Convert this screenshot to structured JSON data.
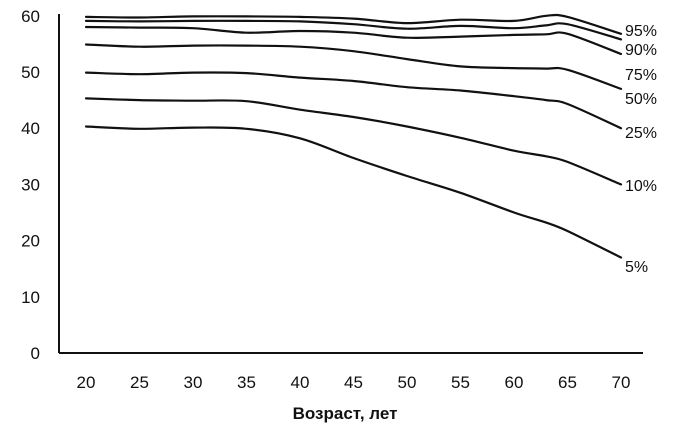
{
  "chart_data": {
    "type": "line",
    "title": "",
    "xlabel": "Возраст, лет",
    "ylabel": "",
    "xlim": [
      17,
      73
    ],
    "ylim": [
      0,
      61
    ],
    "xticks": [
      20,
      25,
      30,
      35,
      40,
      45,
      50,
      55,
      60,
      65,
      70
    ],
    "yticks": [
      0,
      10,
      20,
      30,
      40,
      50,
      60
    ],
    "x": [
      20,
      25,
      30,
      35,
      40,
      45,
      50,
      55,
      60,
      63,
      65,
      70
    ],
    "grid": false,
    "series": [
      {
        "name": "95%",
        "values": [
          59.8,
          59.7,
          59.9,
          59.9,
          59.8,
          59.5,
          58.7,
          59.3,
          59.1,
          60.0,
          59.8,
          56.8
        ]
      },
      {
        "name": "90%",
        "values": [
          59.1,
          59.0,
          59.1,
          59.1,
          59.0,
          58.5,
          57.7,
          58.2,
          57.8,
          58.3,
          58.5,
          55.8
        ]
      },
      {
        "name": "75%",
        "values": [
          58.0,
          57.9,
          57.8,
          57.0,
          57.3,
          57.0,
          56.1,
          56.3,
          56.6,
          56.7,
          56.8,
          53.2
        ]
      },
      {
        "name": "50%",
        "values": [
          54.9,
          54.5,
          54.7,
          54.7,
          54.5,
          53.7,
          52.3,
          51.0,
          50.7,
          50.6,
          50.4,
          47.0
        ]
      },
      {
        "name": "25%",
        "values": [
          49.9,
          49.6,
          49.9,
          49.8,
          49.0,
          48.4,
          47.3,
          46.7,
          45.7,
          45.0,
          44.3,
          40.0
        ]
      },
      {
        "name": "10%",
        "values": [
          45.3,
          45.0,
          44.9,
          44.8,
          43.3,
          42.0,
          40.3,
          38.3,
          36.0,
          35.0,
          34.0,
          30.0
        ]
      },
      {
        "name": "5%",
        "values": [
          40.3,
          39.9,
          40.1,
          39.9,
          38.2,
          34.7,
          31.5,
          28.5,
          25.0,
          23.2,
          21.7,
          17.0
        ]
      }
    ]
  }
}
